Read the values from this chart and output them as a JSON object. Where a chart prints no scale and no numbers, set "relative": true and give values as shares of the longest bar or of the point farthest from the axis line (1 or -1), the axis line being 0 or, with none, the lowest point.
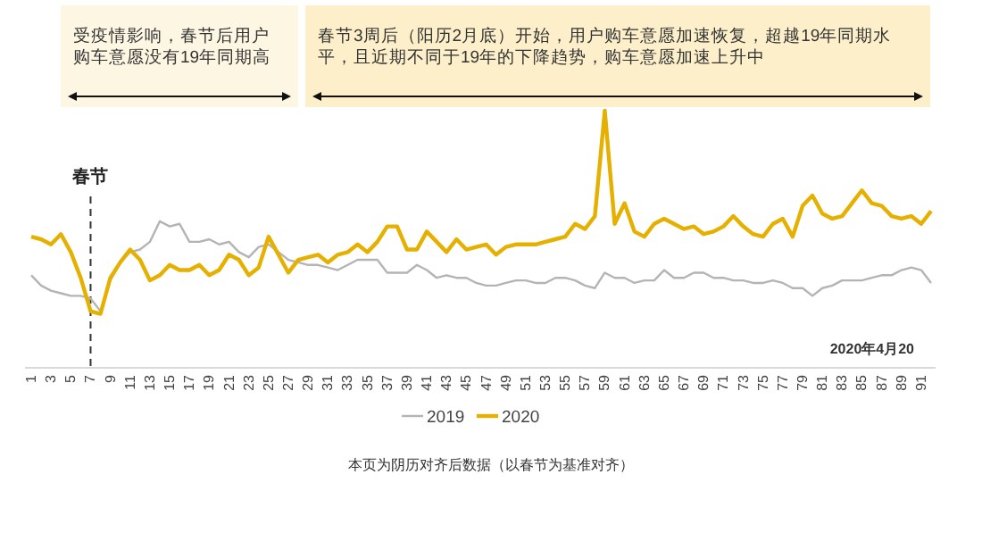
{
  "chart_data": {
    "type": "line",
    "relative": true,
    "legend": "bottom",
    "categories": [
      "1",
      null,
      "3",
      null,
      "5",
      null,
      "7",
      null,
      "9",
      null,
      "11",
      null,
      "13",
      null,
      "15",
      null,
      "17",
      null,
      "19",
      null,
      "21",
      null,
      "23",
      null,
      "25",
      null,
      "27",
      null,
      "29",
      null,
      "31",
      null,
      "33",
      null,
      "35",
      null,
      "37",
      null,
      "39",
      null,
      "41",
      null,
      "43",
      null,
      "45",
      null,
      "47",
      null,
      "49",
      null,
      "51",
      null,
      "53",
      null,
      "55",
      null,
      "57",
      null,
      "59",
      null,
      "61",
      null,
      "63",
      null,
      "65",
      null,
      "67",
      null,
      "69",
      null,
      "71",
      null,
      "73",
      null,
      "75",
      null,
      "77",
      null,
      "79",
      null,
      "81",
      null,
      "83",
      null,
      "85",
      null,
      "87",
      null,
      "89",
      null,
      "91",
      null
    ],
    "series": [
      {
        "name": "2019",
        "color": "#b4b4b4",
        "values": [
          0.36,
          0.32,
          0.3,
          0.29,
          0.28,
          0.28,
          0.27,
          0.22,
          0.34,
          0.41,
          0.45,
          0.46,
          0.49,
          0.57,
          0.55,
          0.56,
          0.49,
          0.49,
          0.5,
          0.48,
          0.49,
          0.45,
          0.43,
          0.47,
          0.48,
          0.45,
          0.42,
          0.41,
          0.4,
          0.4,
          0.39,
          0.38,
          0.4,
          0.42,
          0.42,
          0.42,
          0.37,
          0.37,
          0.37,
          0.4,
          0.38,
          0.35,
          0.36,
          0.35,
          0.35,
          0.33,
          0.32,
          0.32,
          0.33,
          0.34,
          0.34,
          0.33,
          0.33,
          0.35,
          0.35,
          0.34,
          0.32,
          0.31,
          0.37,
          0.35,
          0.35,
          0.33,
          0.34,
          0.34,
          0.38,
          0.35,
          0.35,
          0.37,
          0.37,
          0.35,
          0.35,
          0.34,
          0.34,
          0.33,
          0.33,
          0.34,
          0.33,
          0.31,
          0.31,
          0.28,
          0.31,
          0.32,
          0.34,
          0.34,
          0.34,
          0.35,
          0.36,
          0.36,
          0.38,
          0.39,
          0.38,
          0.33
        ]
      },
      {
        "name": "2020",
        "color": "#e6b000",
        "values": [
          0.51,
          0.5,
          0.48,
          0.52,
          0.45,
          0.35,
          0.22,
          0.21,
          0.35,
          0.41,
          0.46,
          0.42,
          0.34,
          0.36,
          0.4,
          0.38,
          0.38,
          0.4,
          0.36,
          0.38,
          0.44,
          0.42,
          0.36,
          0.39,
          0.51,
          0.44,
          0.37,
          0.42,
          0.43,
          0.44,
          0.41,
          0.44,
          0.45,
          0.48,
          0.45,
          0.49,
          0.55,
          0.55,
          0.46,
          0.46,
          0.53,
          0.49,
          0.45,
          0.5,
          0.46,
          0.47,
          0.48,
          0.44,
          0.47,
          0.48,
          0.48,
          0.48,
          0.49,
          0.5,
          0.51,
          0.56,
          0.54,
          0.59,
          1,
          0.56,
          0.64,
          0.53,
          0.51,
          0.56,
          0.58,
          0.56,
          0.54,
          0.55,
          0.52,
          0.53,
          0.55,
          0.59,
          0.55,
          0.52,
          0.51,
          0.56,
          0.58,
          0.51,
          0.63,
          0.67,
          0.6,
          0.58,
          0.59,
          0.64,
          0.69,
          0.64,
          0.63,
          0.59,
          0.58,
          0.59,
          0.56,
          0.61
        ]
      }
    ],
    "ref_lines": [
      {
        "axis": "x",
        "value": "7",
        "label": "春节",
        "line_style": "dashed",
        "color": "#333333"
      }
    ],
    "annotations": [
      "2020年4月20",
      "本页为阴历对齐后数据（以春节为基准对齐）",
      "受疫情影响，春节后用户购车意愿没有19年同期高",
      "春节3周后（阳历2月底）开始，用户购车意愿加速恢复，超越19年同期水平，且近期不同于19年的下降趋势，购车意愿加速上升中"
    ]
  }
}
